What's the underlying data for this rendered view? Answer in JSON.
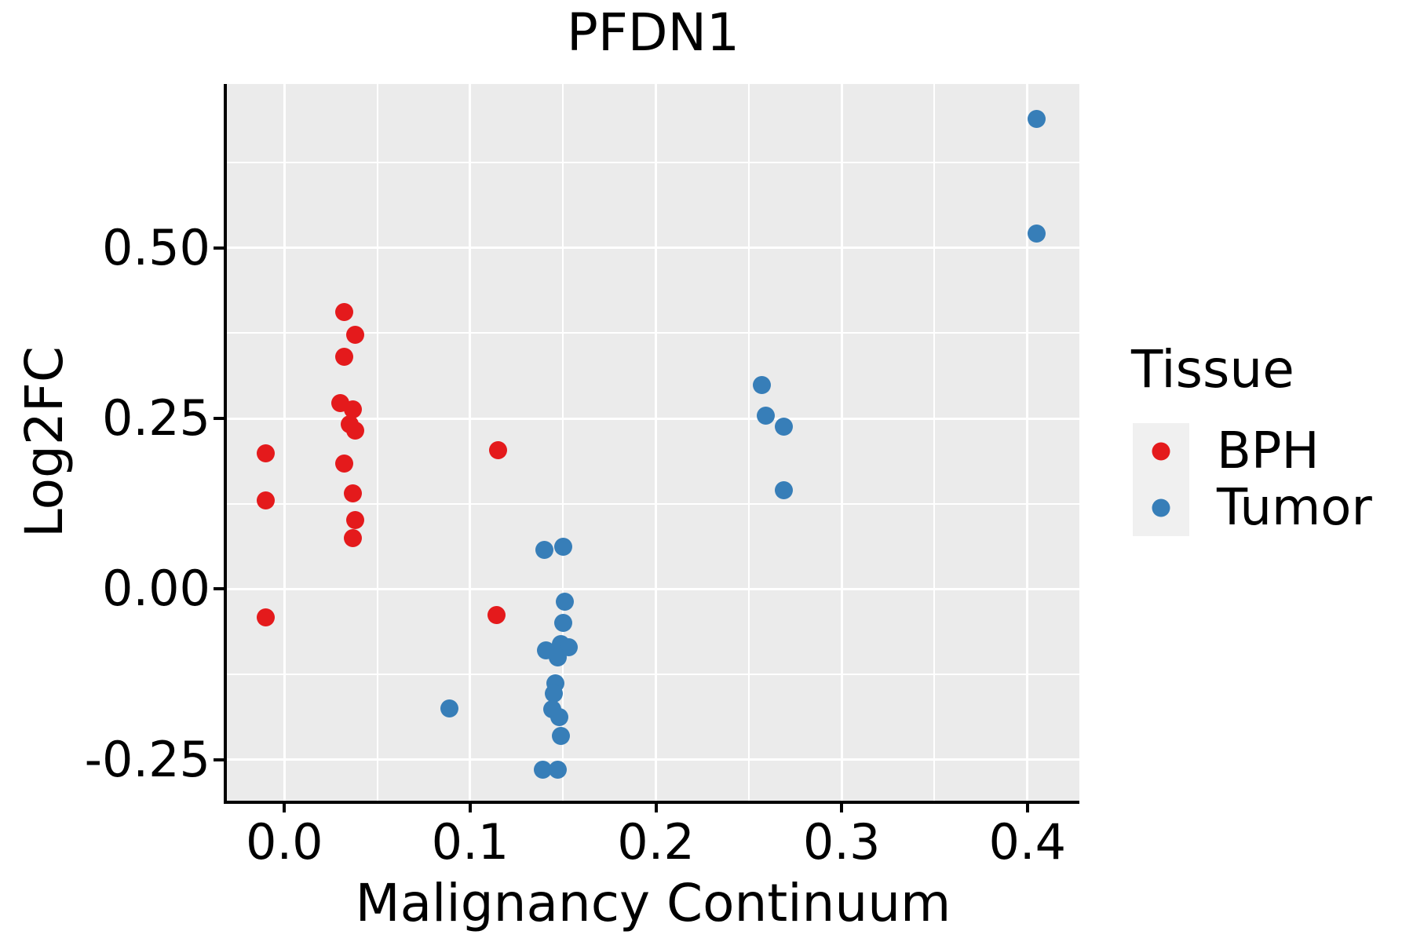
{
  "chart_data": {
    "type": "scatter",
    "title": "PFDN1",
    "xlabel": "Malignancy Continuum",
    "ylabel": "Log2FC",
    "legend_title": "Tissue",
    "legend_position": "right",
    "grid": true,
    "panel_bg": "#EBEBEB",
    "grid_color": "#FFFFFF",
    "legend_key_bg": "#F0F0F0",
    "axis_color": "#000000",
    "xlim": [
      -0.031,
      0.428
    ],
    "ylim": [
      -0.31,
      0.74
    ],
    "x_ticks": [
      {
        "label": "0.0",
        "value": 0.0
      },
      {
        "label": "0.1",
        "value": 0.1
      },
      {
        "label": "0.2",
        "value": 0.2
      },
      {
        "label": "0.3",
        "value": 0.3
      },
      {
        "label": "0.4",
        "value": 0.4
      }
    ],
    "y_ticks": [
      {
        "label": "0.50",
        "value": 0.5
      },
      {
        "label": "0.25",
        "value": 0.25
      },
      {
        "label": "0.00",
        "value": 0.0
      },
      {
        "label": "-0.25",
        "value": -0.25
      }
    ],
    "x_minor_ticks": [
      0.05,
      0.15,
      0.25,
      0.35
    ],
    "y_minor_ticks": [
      0.625,
      0.375,
      0.125,
      -0.125
    ],
    "series": [
      {
        "name": "BPH",
        "color": "#E41A1C",
        "points": [
          [
            -0.01,
            0.199
          ],
          [
            -0.01,
            0.13
          ],
          [
            -0.01,
            -0.041
          ],
          [
            0.032,
            0.406
          ],
          [
            0.038,
            0.372
          ],
          [
            0.032,
            0.34
          ],
          [
            0.03,
            0.272
          ],
          [
            0.037,
            0.263
          ],
          [
            0.035,
            0.241
          ],
          [
            0.038,
            0.232
          ],
          [
            0.032,
            0.184
          ],
          [
            0.037,
            0.14
          ],
          [
            0.038,
            0.101
          ],
          [
            0.037,
            0.075
          ],
          [
            0.115,
            0.204
          ],
          [
            0.114,
            -0.038
          ]
        ]
      },
      {
        "name": "Tumor",
        "color": "#377EB8",
        "points": [
          [
            0.089,
            -0.175
          ],
          [
            0.14,
            0.057
          ],
          [
            0.15,
            0.062
          ],
          [
            0.151,
            -0.018
          ],
          [
            0.15,
            -0.049
          ],
          [
            0.149,
            -0.08
          ],
          [
            0.141,
            -0.09
          ],
          [
            0.153,
            -0.085
          ],
          [
            0.147,
            -0.1
          ],
          [
            0.146,
            -0.138
          ],
          [
            0.145,
            -0.153
          ],
          [
            0.144,
            -0.176
          ],
          [
            0.148,
            -0.188
          ],
          [
            0.149,
            -0.215
          ],
          [
            0.139,
            -0.264
          ],
          [
            0.147,
            -0.264
          ],
          [
            0.257,
            0.299
          ],
          [
            0.259,
            0.254
          ],
          [
            0.269,
            0.238
          ],
          [
            0.269,
            0.145
          ],
          [
            0.405,
            0.689
          ],
          [
            0.405,
            0.521
          ]
        ]
      }
    ]
  }
}
